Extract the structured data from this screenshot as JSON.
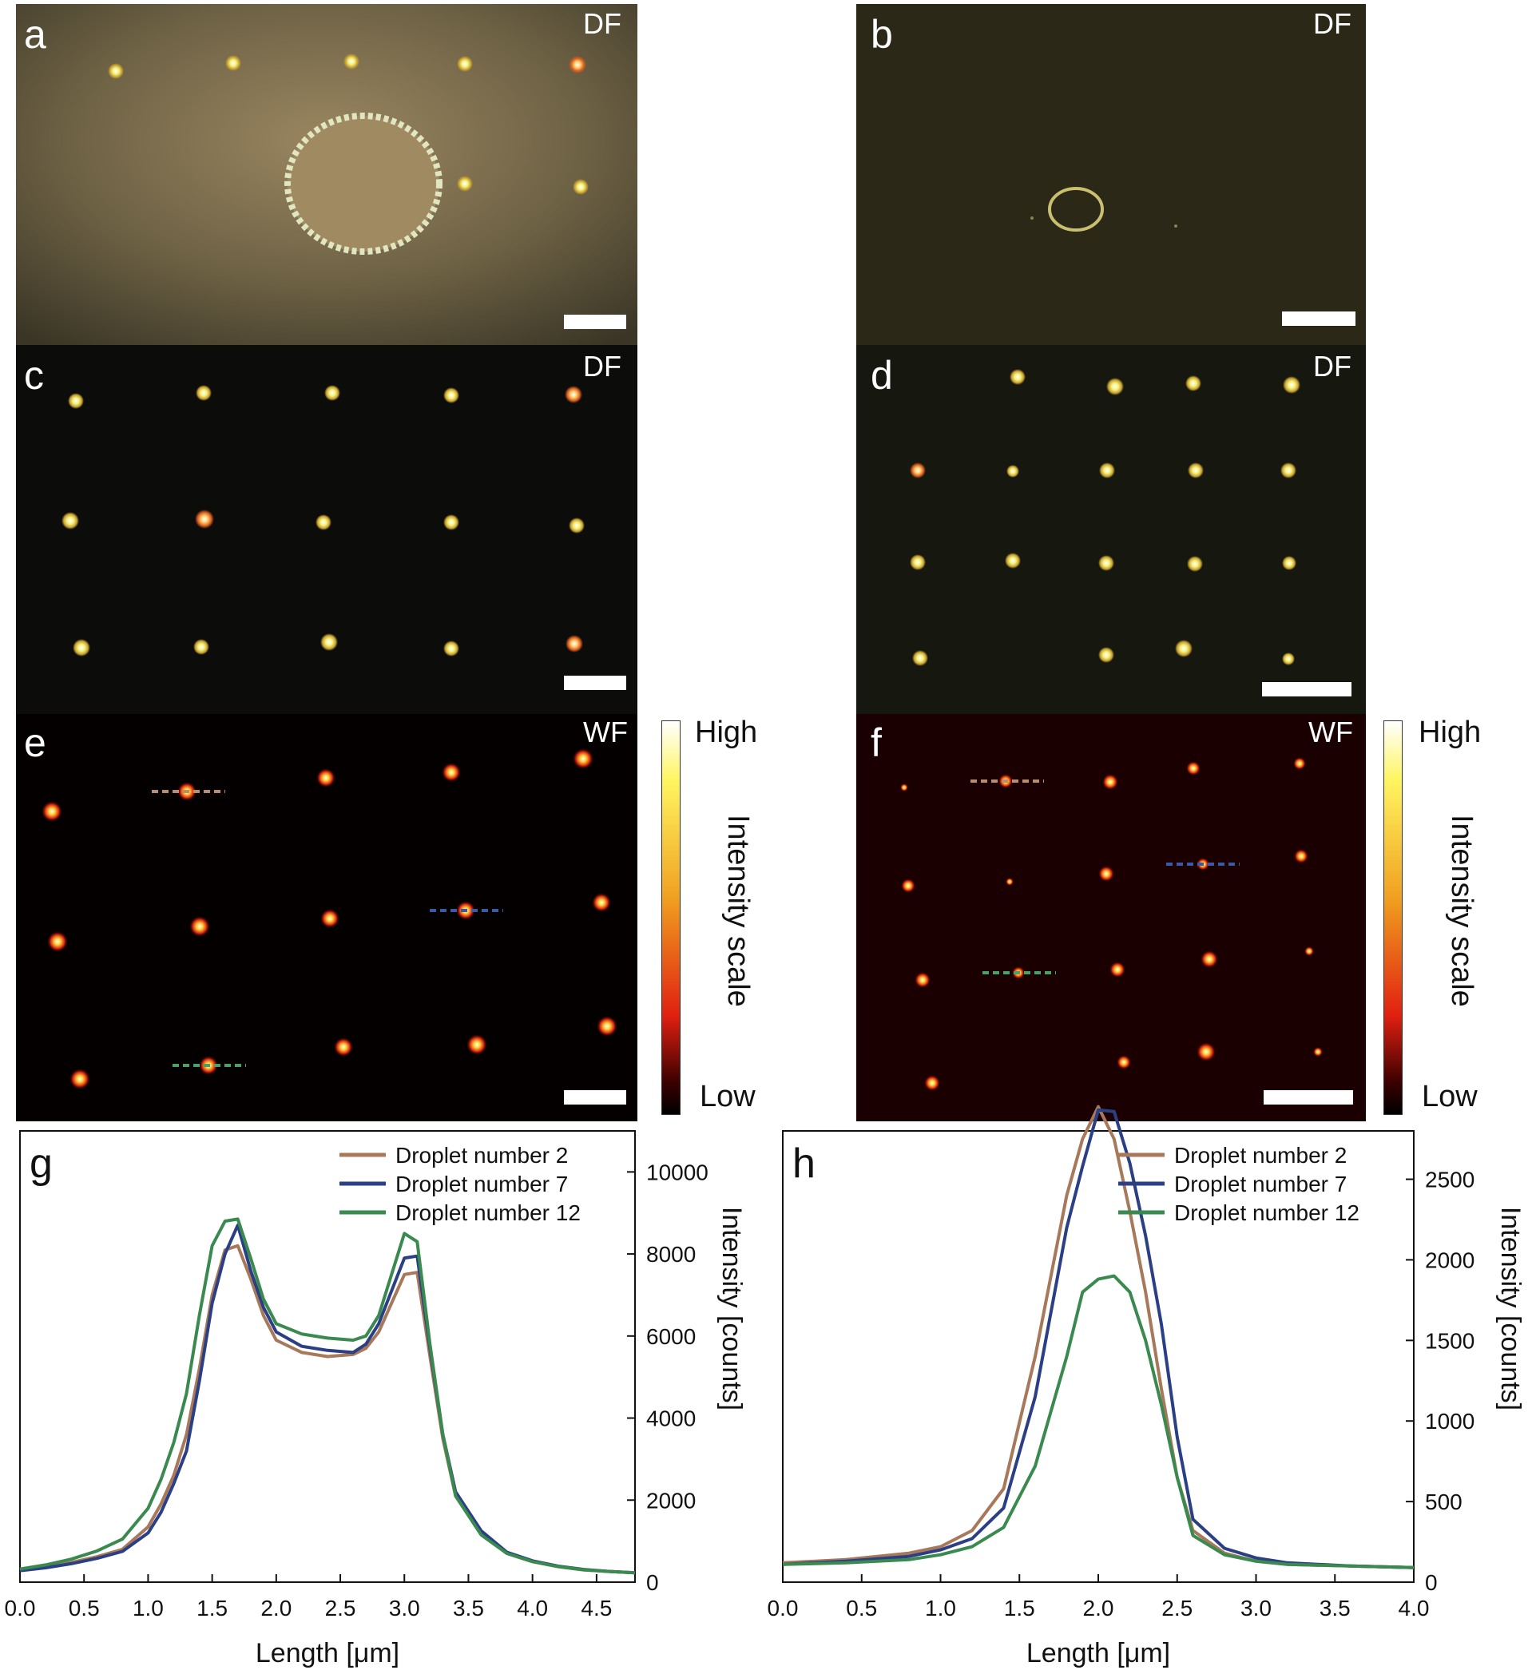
{
  "panels": {
    "a": {
      "label": "a",
      "mode": "DF"
    },
    "b": {
      "label": "b",
      "mode": "DF"
    },
    "c": {
      "label": "c",
      "mode": "DF"
    },
    "d": {
      "label": "d",
      "mode": "DF"
    },
    "e": {
      "label": "e",
      "mode": "WF"
    },
    "f": {
      "label": "f",
      "mode": "WF"
    }
  },
  "colorbar": {
    "high": "High",
    "low": "Low",
    "title": "Intensity scale"
  },
  "colors": {
    "droplet2": "#a8785a",
    "droplet7": "#2b3f85",
    "droplet12": "#3a8a50"
  },
  "chart_data": [
    {
      "id": "g",
      "label": "g",
      "type": "line",
      "xlabel": "Length [μm]",
      "ylabel": "Intensity [counts]",
      "xlim": [
        0,
        4.8
      ],
      "ylim": [
        0,
        11000
      ],
      "xticks": [
        "0.0",
        "0.5",
        "1.0",
        "1.5",
        "2.0",
        "2.5",
        "3.0",
        "3.5",
        "4.0",
        "4.5"
      ],
      "yticks": [
        "0",
        "2000",
        "4000",
        "6000",
        "8000",
        "10000"
      ],
      "legend": "top-right",
      "x": [
        0,
        0.2,
        0.4,
        0.6,
        0.8,
        1.0,
        1.1,
        1.2,
        1.3,
        1.4,
        1.5,
        1.6,
        1.7,
        1.8,
        1.9,
        2.0,
        2.2,
        2.4,
        2.6,
        2.7,
        2.8,
        2.9,
        3.0,
        3.1,
        3.2,
        3.3,
        3.4,
        3.6,
        3.8,
        4.0,
        4.2,
        4.4,
        4.6,
        4.8
      ],
      "series": [
        {
          "name": "Droplet number 2",
          "values": [
            300,
            380,
            480,
            620,
            800,
            1350,
            1900,
            2600,
            3600,
            5200,
            7000,
            8100,
            8200,
            7400,
            6500,
            5900,
            5600,
            5500,
            5550,
            5700,
            6100,
            6800,
            7500,
            7550,
            5500,
            3500,
            2100,
            1200,
            700,
            500,
            380,
            300,
            260,
            230
          ]
        },
        {
          "name": "Droplet number 7",
          "values": [
            280,
            350,
            450,
            580,
            750,
            1200,
            1700,
            2400,
            3200,
            4900,
            6800,
            8000,
            8700,
            7600,
            6700,
            6100,
            5750,
            5650,
            5600,
            5800,
            6300,
            7100,
            7900,
            7950,
            5700,
            3600,
            2200,
            1250,
            730,
            520,
            390,
            310,
            260,
            230
          ]
        },
        {
          "name": "Droplet number 12",
          "values": [
            320,
            420,
            560,
            760,
            1050,
            1800,
            2500,
            3400,
            4600,
            6500,
            8200,
            8800,
            8850,
            7900,
            6900,
            6300,
            6050,
            5950,
            5900,
            6000,
            6500,
            7500,
            8500,
            8300,
            5800,
            3600,
            2100,
            1150,
            700,
            500,
            380,
            300,
            260,
            230
          ]
        }
      ]
    },
    {
      "id": "h",
      "label": "h",
      "type": "line",
      "xlabel": "Length [μm]",
      "ylabel": "Intensity [counts]",
      "xlim": [
        0,
        4.0
      ],
      "ylim": [
        0,
        2800
      ],
      "xticks": [
        "0.0",
        "0.5",
        "1.0",
        "1.5",
        "2.0",
        "2.5",
        "3.0",
        "3.5",
        "4.0"
      ],
      "yticks": [
        "0",
        "500",
        "1000",
        "1500",
        "2000",
        "2500"
      ],
      "legend": "top-right",
      "x": [
        0,
        0.4,
        0.8,
        1.0,
        1.2,
        1.4,
        1.6,
        1.8,
        1.9,
        2.0,
        2.1,
        2.2,
        2.3,
        2.4,
        2.5,
        2.6,
        2.8,
        3.0,
        3.2,
        3.6,
        4.0
      ],
      "series": [
        {
          "name": "Droplet number 2",
          "values": [
            120,
            140,
            180,
            220,
            320,
            580,
            1400,
            2400,
            2750,
            2950,
            2750,
            2300,
            1800,
            1200,
            650,
            320,
            180,
            130,
            110,
            100,
            90
          ]
        },
        {
          "name": "Droplet number 7",
          "values": [
            110,
            130,
            160,
            200,
            270,
            460,
            1150,
            2200,
            2580,
            2930,
            2920,
            2600,
            2150,
            1600,
            900,
            390,
            210,
            150,
            120,
            100,
            90
          ]
        },
        {
          "name": "Droplet number 12",
          "values": [
            110,
            120,
            140,
            170,
            220,
            340,
            720,
            1400,
            1800,
            1880,
            1900,
            1800,
            1500,
            1100,
            650,
            290,
            170,
            130,
            110,
            100,
            90
          ]
        }
      ]
    }
  ]
}
